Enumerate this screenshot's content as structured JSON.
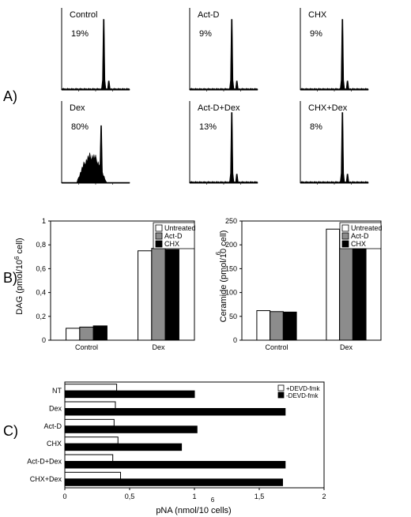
{
  "panels": {
    "a": "A)",
    "b": "B)",
    "c": "C)"
  },
  "colors": {
    "untreated": "#ffffff",
    "actd": "#8c8c8c",
    "chx": "#000000",
    "plus_devd": "#ffffff",
    "minus_devd": "#000000"
  },
  "chart_data": [
    {
      "type": "area",
      "name": "histogram-control",
      "title": "Control",
      "percent": "19%",
      "profile": "peak"
    },
    {
      "type": "area",
      "name": "histogram-act-d",
      "title": "Act-D",
      "percent": "9%",
      "profile": "peak"
    },
    {
      "type": "area",
      "name": "histogram-chx",
      "title": "CHX",
      "percent": "9%",
      "profile": "peak"
    },
    {
      "type": "area",
      "name": "histogram-dex",
      "title": "Dex",
      "percent": "80%",
      "profile": "subg1"
    },
    {
      "type": "area",
      "name": "histogram-act-d-dex",
      "title": "Act-D+Dex",
      "percent": "13%",
      "profile": "peak"
    },
    {
      "type": "area",
      "name": "histogram-chx-dex",
      "title": "CHX+Dex",
      "percent": "8%",
      "profile": "peak"
    },
    {
      "type": "bar",
      "name": "dag-chart",
      "ylabel": "DAG (pmol/10",
      "ylabel_sup": "6",
      "ylabel_end": " cell)",
      "categories": [
        "Control",
        "Dex"
      ],
      "series": [
        {
          "name": "Untreated",
          "values": [
            0.1,
            0.75
          ]
        },
        {
          "name": "Act-D",
          "values": [
            0.11,
            0.77
          ]
        },
        {
          "name": "CHX",
          "values": [
            0.12,
            0.76
          ]
        }
      ],
      "ylim": [
        0,
        1
      ],
      "yticks": [
        0,
        0.2,
        0.4,
        0.6,
        0.8,
        1
      ],
      "ytick_labels": [
        "0",
        "0,2",
        "0,4",
        "0,6",
        "0,8",
        "1"
      ],
      "legend": "top-right"
    },
    {
      "type": "bar",
      "name": "ceramide-chart",
      "ylabel": "Ceramide (pmol/10 cell)",
      "ylabel_sup": "6",
      "categories": [
        "Control",
        "Dex"
      ],
      "series": [
        {
          "name": "Untreated",
          "values": [
            62,
            233
          ]
        },
        {
          "name": "Act-D",
          "values": [
            60,
            230
          ]
        },
        {
          "name": "CHX",
          "values": [
            59,
            236
          ]
        }
      ],
      "ylim": [
        0,
        250
      ],
      "yticks": [
        0,
        50,
        100,
        150,
        200,
        250
      ],
      "ytick_labels": [
        "0",
        "50",
        "100",
        "150",
        "200",
        "250"
      ],
      "legend": "top-right"
    },
    {
      "type": "bar",
      "name": "pna-chart",
      "orientation": "horizontal",
      "xlabel": "pNA (nmol/10 cells)",
      "xlabel_sup": "6",
      "categories": [
        "NT",
        "Dex",
        "Act-D",
        "CHX",
        "Act-D+Dex",
        "CHX+Dex"
      ],
      "series": [
        {
          "name": "+DEVD-fmk",
          "values": [
            0.4,
            0.39,
            0.38,
            0.41,
            0.37,
            0.43
          ]
        },
        {
          "name": "-DEVD-fmk",
          "values": [
            1.0,
            1.7,
            1.02,
            0.9,
            1.7,
            1.68
          ]
        }
      ],
      "xlim": [
        0,
        2
      ],
      "xticks": [
        0,
        0.5,
        1,
        1.5,
        2
      ],
      "xtick_labels": [
        "0",
        "0,5",
        "1",
        "1,5",
        "2"
      ],
      "legend": "top-right"
    }
  ]
}
